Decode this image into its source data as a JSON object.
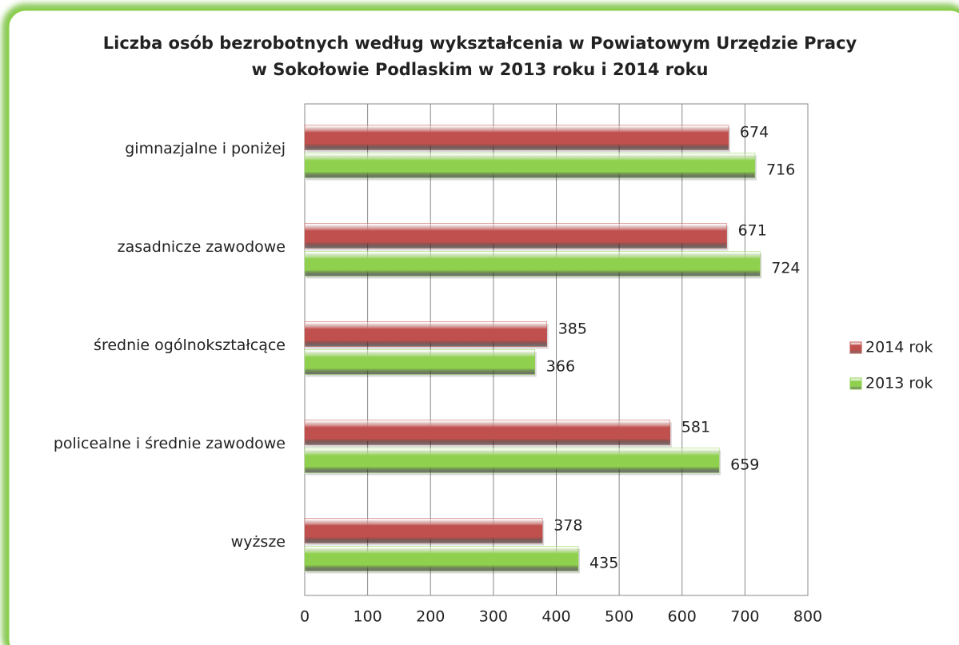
{
  "chart_data": {
    "type": "bar",
    "orientation": "horizontal",
    "title": [
      "Liczba osób bezrobotnych według wykształcenia w Powiatowym Urzędzie Pracy",
      "w Sokołowie Podlaskim w  2013 roku i 2014 roku"
    ],
    "categories": [
      "gimnazjalne i poniżej",
      "zasadnicze zawodowe",
      "średnie ogólnokształcące",
      "policealne i średnie zawodowe",
      "wyższe"
    ],
    "series": [
      {
        "name": "2014 rok",
        "color": "#c0504d",
        "values": [
          674,
          671,
          385,
          581,
          378
        ]
      },
      {
        "name": "2013 rok",
        "color": "#8fd14f",
        "values": [
          716,
          724,
          366,
          659,
          435
        ]
      }
    ],
    "xlim": [
      0,
      800
    ],
    "xticks": [
      0,
      100,
      200,
      300,
      400,
      500,
      600,
      700,
      800
    ],
    "grid": true,
    "legend": "right"
  }
}
